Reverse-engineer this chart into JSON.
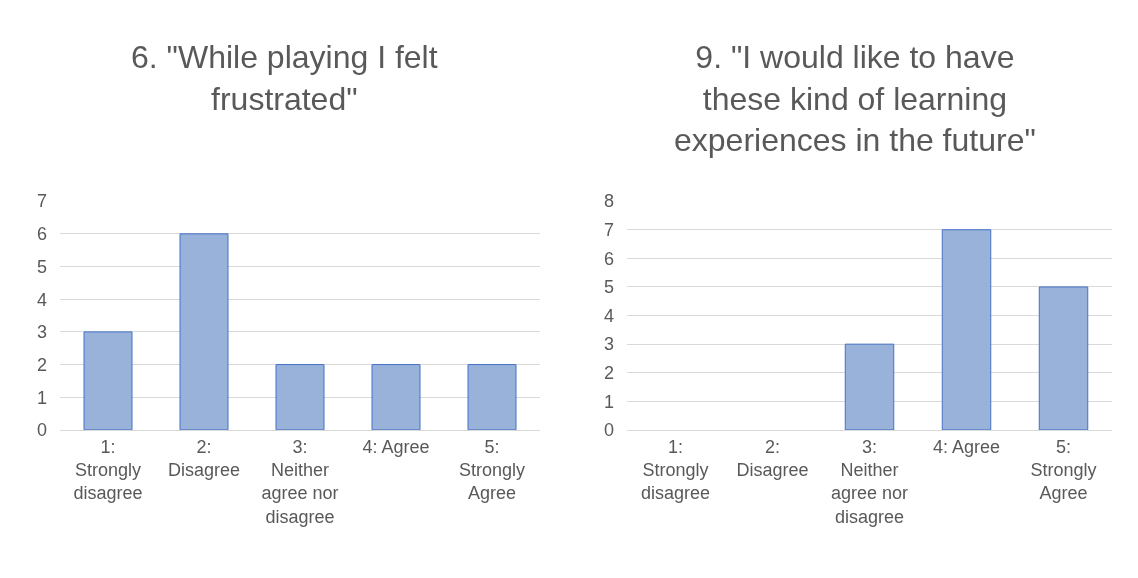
{
  "chart_data": [
    {
      "type": "bar",
      "title": "6. \"While playing I felt frustrated\"",
      "categories": [
        "1: Strongly disagree",
        "2: Disagree",
        "3: Neither agree nor disagree",
        "4: Agree",
        "5: Strongly Agree"
      ],
      "values": [
        3,
        6,
        2,
        2,
        2
      ],
      "color": "#98b2da",
      "ylim": [
        0,
        7
      ],
      "yticks": [
        0,
        1,
        2,
        3,
        4,
        5,
        6,
        7
      ],
      "grid": "y"
    },
    {
      "type": "bar",
      "title": "9. \"I would like to have these kind of learning experiences in the future\"",
      "categories": [
        "1: Strongly disagree",
        "2: Disagree",
        "3: Neither agree nor disagree",
        "4: Agree",
        "5: Strongly Agree"
      ],
      "values": [
        0,
        0,
        3,
        7,
        5
      ],
      "color": "#98b2da",
      "ylim": [
        0,
        8
      ],
      "yticks": [
        0,
        1,
        2,
        3,
        4,
        5,
        6,
        7,
        8
      ],
      "grid": "y"
    }
  ]
}
